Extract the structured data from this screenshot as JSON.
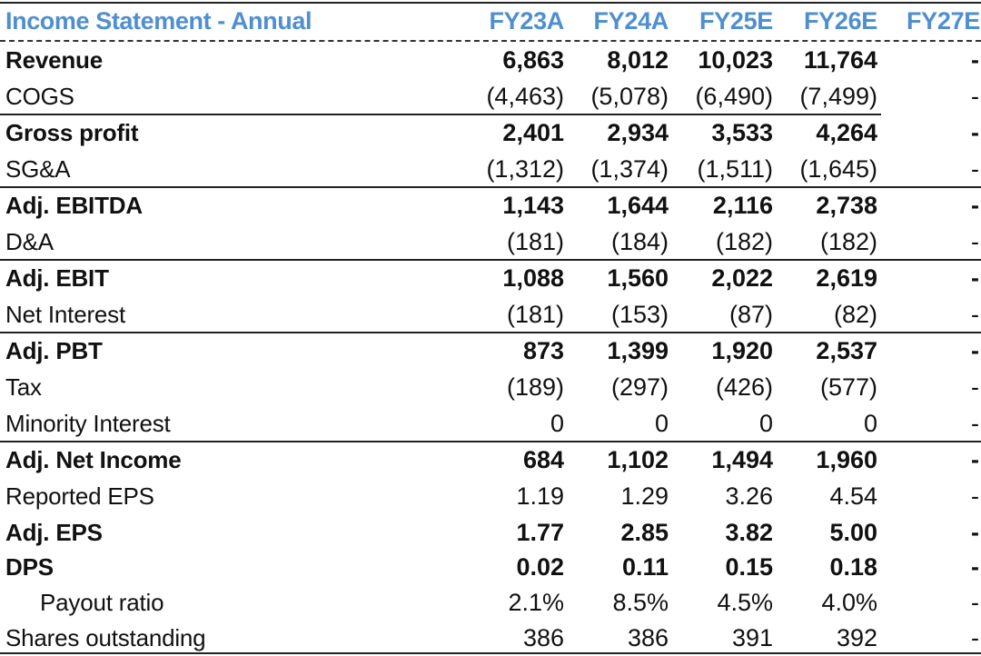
{
  "table": {
    "title": "Income Statement - Annual",
    "years": [
      "FY23A",
      "FY24A",
      "FY25E",
      "FY26E",
      "FY27E"
    ],
    "rows": [
      {
        "label": "Revenue",
        "values": [
          "6,863",
          "8,012",
          "10,023",
          "11,764",
          "-"
        ]
      },
      {
        "label": "COGS",
        "values": [
          "(4,463)",
          "(5,078)",
          "(6,490)",
          "(7,499)",
          "-"
        ]
      },
      {
        "label": "Gross profit",
        "values": [
          "2,401",
          "2,934",
          "3,533",
          "4,264",
          "-"
        ]
      },
      {
        "label": "SG&A",
        "values": [
          "(1,312)",
          "(1,374)",
          "(1,511)",
          "(1,645)",
          "-"
        ]
      },
      {
        "label": "Adj. EBITDA",
        "values": [
          "1,143",
          "1,644",
          "2,116",
          "2,738",
          "-"
        ]
      },
      {
        "label": "D&A",
        "values": [
          "(181)",
          "(184)",
          "(182)",
          "(182)",
          "-"
        ]
      },
      {
        "label": "Adj. EBIT",
        "values": [
          "1,088",
          "1,560",
          "2,022",
          "2,619",
          "-"
        ]
      },
      {
        "label": "Net Interest",
        "values": [
          "(181)",
          "(153)",
          "(87)",
          "(82)",
          "-"
        ]
      },
      {
        "label": "Adj. PBT",
        "values": [
          "873",
          "1,399",
          "1,920",
          "2,537",
          "-"
        ]
      },
      {
        "label": "Tax",
        "values": [
          "(189)",
          "(297)",
          "(426)",
          "(577)",
          "-"
        ]
      },
      {
        "label": "Minority Interest",
        "values": [
          "0",
          "0",
          "0",
          "0",
          "-"
        ]
      },
      {
        "label": "Adj. Net Income",
        "values": [
          "684",
          "1,102",
          "1,494",
          "1,960",
          "-"
        ]
      },
      {
        "label": "Reported EPS",
        "values": [
          "1.19",
          "1.29",
          "3.26",
          "4.54",
          "-"
        ]
      },
      {
        "label": "Adj. EPS",
        "values": [
          "1.77",
          "2.85",
          "3.82",
          "5.00",
          "-"
        ]
      },
      {
        "label": "DPS",
        "values": [
          "0.02",
          "0.11",
          "0.15",
          "0.18",
          "-"
        ]
      },
      {
        "label": "Payout ratio",
        "values": [
          "2.1%",
          "8.5%",
          "4.5%",
          "4.0%",
          "-"
        ]
      },
      {
        "label": "Shares outstanding",
        "values": [
          "386",
          "386",
          "391",
          "392",
          "-"
        ]
      }
    ]
  },
  "colors": {
    "header_text": "#4f8fd0",
    "rule": "#222222"
  }
}
